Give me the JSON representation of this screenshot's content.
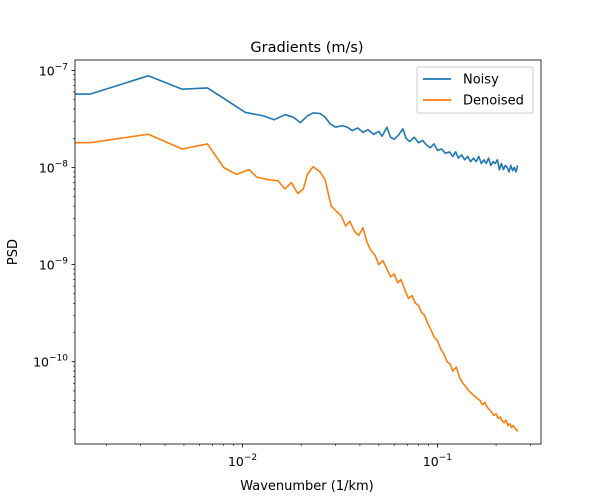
{
  "chart_data": {
    "type": "line",
    "title": "Gradients (m/s)",
    "xlabel": "Wavenumber (1/km)",
    "ylabel": "PSD",
    "xscale": "log",
    "yscale": "log",
    "xlim": [
      0.00138,
      0.34
    ],
    "ylim": [
      1.42e-11,
      1.28e-07
    ],
    "xticks": [
      {
        "value": 0.01,
        "base": "10",
        "exp": "−2"
      },
      {
        "value": 0.1,
        "base": "10",
        "exp": "−1"
      }
    ],
    "yticks": [
      {
        "value": 1e-10,
        "base": "10",
        "exp": "−10"
      },
      {
        "value": 1e-09,
        "base": "10",
        "exp": "−9"
      },
      {
        "value": 1e-08,
        "base": "10",
        "exp": "−8"
      },
      {
        "value": 1e-07,
        "base": "10",
        "exp": "−7"
      }
    ],
    "grid": false,
    "legend_position": "top-right",
    "series": [
      {
        "name": "Noisy",
        "color": "#1f77b4",
        "points": [
          [
            0.00138,
            5.7e-08
          ],
          [
            0.00165,
            5.7e-08
          ],
          [
            0.00328,
            8.8e-08
          ],
          [
            0.0049,
            6.4e-08
          ],
          [
            0.0066,
            6.6e-08
          ],
          [
            0.0082,
            5e-08
          ],
          [
            0.0103,
            3.7e-08
          ],
          [
            0.0128,
            3.4e-08
          ],
          [
            0.0145,
            3.1e-08
          ],
          [
            0.0165,
            3.5e-08
          ],
          [
            0.0182,
            3.3e-08
          ],
          [
            0.0198,
            2.9e-08
          ],
          [
            0.0215,
            3.4e-08
          ],
          [
            0.023,
            3.65e-08
          ],
          [
            0.025,
            3.6e-08
          ],
          [
            0.0265,
            3.3e-08
          ],
          [
            0.0282,
            2.8e-08
          ],
          [
            0.03,
            2.6e-08
          ],
          [
            0.0325,
            2.7e-08
          ],
          [
            0.0345,
            2.6e-08
          ],
          [
            0.0365,
            2.4e-08
          ],
          [
            0.039,
            2.55e-08
          ],
          [
            0.0415,
            2.3e-08
          ],
          [
            0.044,
            2.45e-08
          ],
          [
            0.047,
            2.2e-08
          ],
          [
            0.05,
            2.35e-08
          ],
          [
            0.052,
            2.1e-08
          ],
          [
            0.055,
            2.6e-08
          ],
          [
            0.0575,
            2.05e-08
          ],
          [
            0.06,
            1.95e-08
          ],
          [
            0.063,
            2.15e-08
          ],
          [
            0.0665,
            2.5e-08
          ],
          [
            0.069,
            2e-08
          ],
          [
            0.072,
            1.85e-08
          ],
          [
            0.076,
            2.05e-08
          ],
          [
            0.08,
            1.8e-08
          ],
          [
            0.084,
            1.9e-08
          ],
          [
            0.088,
            1.7e-08
          ],
          [
            0.092,
            1.6e-08
          ],
          [
            0.096,
            1.75e-08
          ],
          [
            0.1,
            1.5e-08
          ],
          [
            0.105,
            1.55e-08
          ],
          [
            0.11,
            1.4e-08
          ],
          [
            0.115,
            1.45e-08
          ],
          [
            0.12,
            1.3e-08
          ],
          [
            0.124,
            1.45e-08
          ],
          [
            0.128,
            1.25e-08
          ],
          [
            0.133,
            1.35e-08
          ],
          [
            0.138,
            1.2e-08
          ],
          [
            0.143,
            1.3e-08
          ],
          [
            0.148,
            1.15e-08
          ],
          [
            0.153,
            1.25e-08
          ],
          [
            0.158,
            1.15e-08
          ],
          [
            0.163,
            1.3e-08
          ],
          [
            0.168,
            1.1e-08
          ],
          [
            0.173,
            1.2e-08
          ],
          [
            0.178,
            1.1e-08
          ],
          [
            0.183,
            1.25e-08
          ],
          [
            0.188,
            1.05e-08
          ],
          [
            0.193,
            1.15e-08
          ],
          [
            0.198,
            1.1e-08
          ],
          [
            0.203,
            1.2e-08
          ],
          [
            0.208,
            9.5e-09
          ],
          [
            0.213,
            1.1e-08
          ],
          [
            0.218,
            9.5e-09
          ],
          [
            0.223,
            1.05e-08
          ],
          [
            0.228,
            1e-08
          ],
          [
            0.233,
            9e-09
          ],
          [
            0.238,
            1.05e-08
          ],
          [
            0.243,
            9.3e-09
          ],
          [
            0.248,
            1e-08
          ],
          [
            0.253,
            9e-09
          ],
          [
            0.258,
            1.05e-08
          ]
        ]
      },
      {
        "name": "Denoised",
        "color": "#ff7f0e",
        "points": [
          [
            0.00138,
            1.8e-08
          ],
          [
            0.00165,
            1.8e-08
          ],
          [
            0.00328,
            2.2e-08
          ],
          [
            0.0049,
            1.55e-08
          ],
          [
            0.0066,
            1.75e-08
          ],
          [
            0.008,
            1e-08
          ],
          [
            0.0093,
            8.5e-09
          ],
          [
            0.0108,
            9.5e-09
          ],
          [
            0.0118,
            8e-09
          ],
          [
            0.0135,
            7.5e-09
          ],
          [
            0.0152,
            7.3e-09
          ],
          [
            0.0165,
            6e-09
          ],
          [
            0.0178,
            7e-09
          ],
          [
            0.0192,
            5.4e-09
          ],
          [
            0.0205,
            6e-09
          ],
          [
            0.0215,
            8.5e-09
          ],
          [
            0.023,
            1.02e-08
          ],
          [
            0.025,
            9e-09
          ],
          [
            0.0265,
            7.5e-09
          ],
          [
            0.0285,
            4e-09
          ],
          [
            0.0305,
            3.5e-09
          ],
          [
            0.032,
            3.2e-09
          ],
          [
            0.0338,
            2.5e-09
          ],
          [
            0.0355,
            2.8e-09
          ],
          [
            0.0375,
            2.2e-09
          ],
          [
            0.0395,
            2e-09
          ],
          [
            0.0415,
            2.4e-09
          ],
          [
            0.0435,
            1.7e-09
          ],
          [
            0.0455,
            1.4e-09
          ],
          [
            0.0478,
            1.25e-09
          ],
          [
            0.05,
            1e-09
          ],
          [
            0.0525,
            1.1e-09
          ],
          [
            0.055,
            9e-10
          ],
          [
            0.0575,
            7.5e-10
          ],
          [
            0.06,
            8e-10
          ],
          [
            0.0625,
            6.5e-10
          ],
          [
            0.065,
            7e-10
          ],
          [
            0.068,
            5.5e-10
          ],
          [
            0.071,
            4.5e-10
          ],
          [
            0.074,
            4.8e-10
          ],
          [
            0.077,
            4e-10
          ],
          [
            0.08,
            3.8e-10
          ],
          [
            0.083,
            3.2e-10
          ],
          [
            0.086,
            3e-10
          ],
          [
            0.089,
            2.5e-10
          ],
          [
            0.092,
            2.2e-10
          ],
          [
            0.096,
            1.8e-10
          ],
          [
            0.1,
            1.65e-10
          ],
          [
            0.104,
            1.35e-10
          ],
          [
            0.108,
            1.2e-10
          ],
          [
            0.112,
            1e-10
          ],
          [
            0.116,
            9.5e-11
          ],
          [
            0.12,
            8e-11
          ],
          [
            0.125,
            8.8e-11
          ],
          [
            0.13,
            6.8e-11
          ],
          [
            0.135,
            6e-11
          ],
          [
            0.14,
            5.5e-11
          ],
          [
            0.145,
            5e-11
          ],
          [
            0.15,
            4.7e-11
          ],
          [
            0.155,
            4.4e-11
          ],
          [
            0.16,
            4.2e-11
          ],
          [
            0.165,
            4e-11
          ],
          [
            0.17,
            3.6e-11
          ],
          [
            0.175,
            3.8e-11
          ],
          [
            0.18,
            3.4e-11
          ],
          [
            0.185,
            3.2e-11
          ],
          [
            0.19,
            3e-11
          ],
          [
            0.195,
            2.8e-11
          ],
          [
            0.2,
            2.9e-11
          ],
          [
            0.205,
            2.6e-11
          ],
          [
            0.21,
            2.7e-11
          ],
          [
            0.215,
            2.45e-11
          ],
          [
            0.22,
            2.35e-11
          ],
          [
            0.225,
            2.5e-11
          ],
          [
            0.23,
            2.2e-11
          ],
          [
            0.235,
            2.3e-11
          ],
          [
            0.24,
            2.1e-11
          ],
          [
            0.245,
            2.2e-11
          ],
          [
            0.25,
            2.05e-11
          ],
          [
            0.255,
            2e-11
          ],
          [
            0.258,
            1.9e-11
          ]
        ]
      }
    ]
  }
}
